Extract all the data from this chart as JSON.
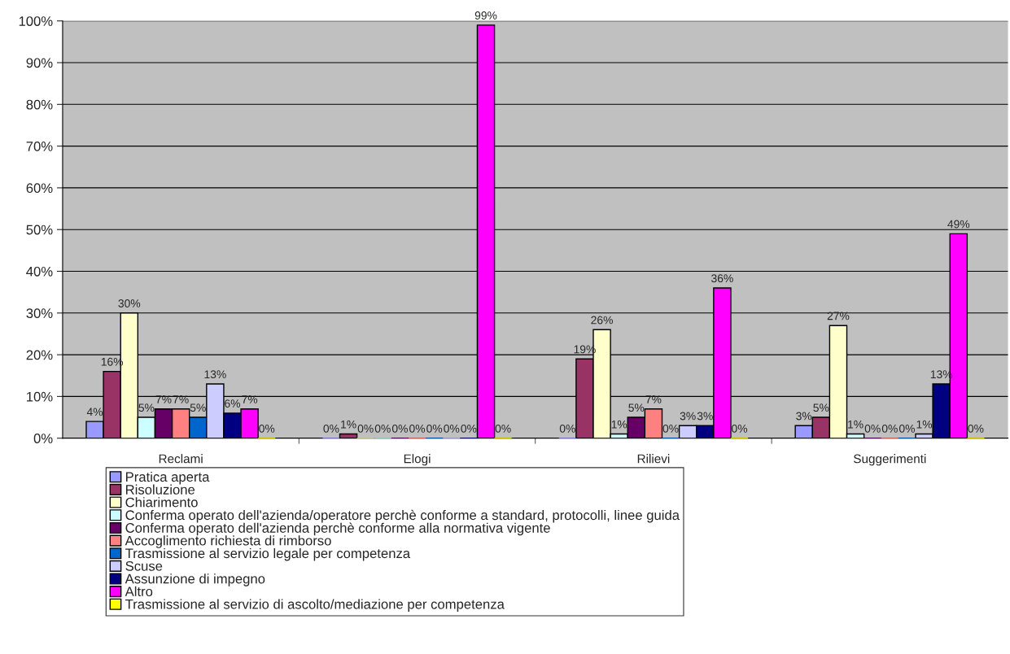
{
  "chart_data": {
    "type": "bar",
    "categories": [
      "Reclami",
      "Elogi",
      "Rilievi",
      "Suggerimenti"
    ],
    "series": [
      {
        "name": "Pratica aperta",
        "color": "#9999ff",
        "values": [
          4,
          0,
          0,
          3
        ],
        "value_labels": [
          "4%",
          "0%",
          "0%",
          "3%"
        ]
      },
      {
        "name": "Risoluzione",
        "color": "#993366",
        "values": [
          16,
          1,
          19,
          5
        ],
        "value_labels": [
          "16%",
          "1%",
          "19%",
          "5%"
        ]
      },
      {
        "name": "Chiarimento",
        "color": "#ffffcc",
        "values": [
          30,
          0,
          26,
          27
        ],
        "value_labels": [
          "30%",
          "0%",
          "26%",
          "27%"
        ]
      },
      {
        "name": "Conferma operato dell'azienda/operatore perchè conforme a standard, protocolli, linee guida",
        "color": "#ccffff",
        "values": [
          5,
          0,
          1,
          1
        ],
        "value_labels": [
          "5%",
          "0%",
          "1%",
          "1%"
        ]
      },
      {
        "name": "Conferma operato dell'azienda perchè conforme alla normativa vigente",
        "color": "#660066",
        "values": [
          7,
          0,
          5,
          0
        ],
        "value_labels": [
          "7%",
          "0%",
          "5%",
          "0%"
        ]
      },
      {
        "name": "Accoglimento richiesta di rimborso",
        "color": "#ff8080",
        "values": [
          7,
          0,
          7,
          0
        ],
        "value_labels": [
          "7%",
          "0%",
          "7%",
          "0%"
        ]
      },
      {
        "name": "Trasmissione al servizio legale per competenza",
        "color": "#0066cc",
        "values": [
          5,
          0,
          0,
          0
        ],
        "value_labels": [
          "5%",
          "0%",
          "0%",
          "0%"
        ]
      },
      {
        "name": "Scuse",
        "color": "#ccccff",
        "values": [
          13,
          0,
          3,
          1
        ],
        "value_labels": [
          "13%",
          "0%",
          "3%",
          "1%"
        ]
      },
      {
        "name": "Assunzione di impegno",
        "color": "#000080",
        "values": [
          6,
          0,
          3,
          13
        ],
        "value_labels": [
          "6%",
          "0%",
          "3%",
          "13%"
        ]
      },
      {
        "name": "Altro",
        "color": "#ff00ff",
        "values": [
          7,
          99,
          36,
          49
        ],
        "value_labels": [
          "7%",
          "99%",
          "36%",
          "49%"
        ]
      },
      {
        "name": "Trasmissione al servizio di ascolto/mediazione per competenza",
        "color": "#ffff00",
        "values": [
          0,
          0,
          0,
          0
        ],
        "value_labels": [
          "0%",
          "0%",
          "0%",
          "0%"
        ]
      }
    ],
    "ylim": [
      0,
      100
    ],
    "yticks": [
      {
        "value": 0,
        "label": "0%"
      },
      {
        "value": 10,
        "label": "10%"
      },
      {
        "value": 20,
        "label": "20%"
      },
      {
        "value": 30,
        "label": "30%"
      },
      {
        "value": 40,
        "label": "40%"
      },
      {
        "value": 50,
        "label": "50%"
      },
      {
        "value": 60,
        "label": "60%"
      },
      {
        "value": 70,
        "label": "70%"
      },
      {
        "value": 80,
        "label": "80%"
      },
      {
        "value": 90,
        "label": "90%"
      },
      {
        "value": 100,
        "label": "100%"
      }
    ],
    "grid": "y",
    "legend": "bottom"
  }
}
